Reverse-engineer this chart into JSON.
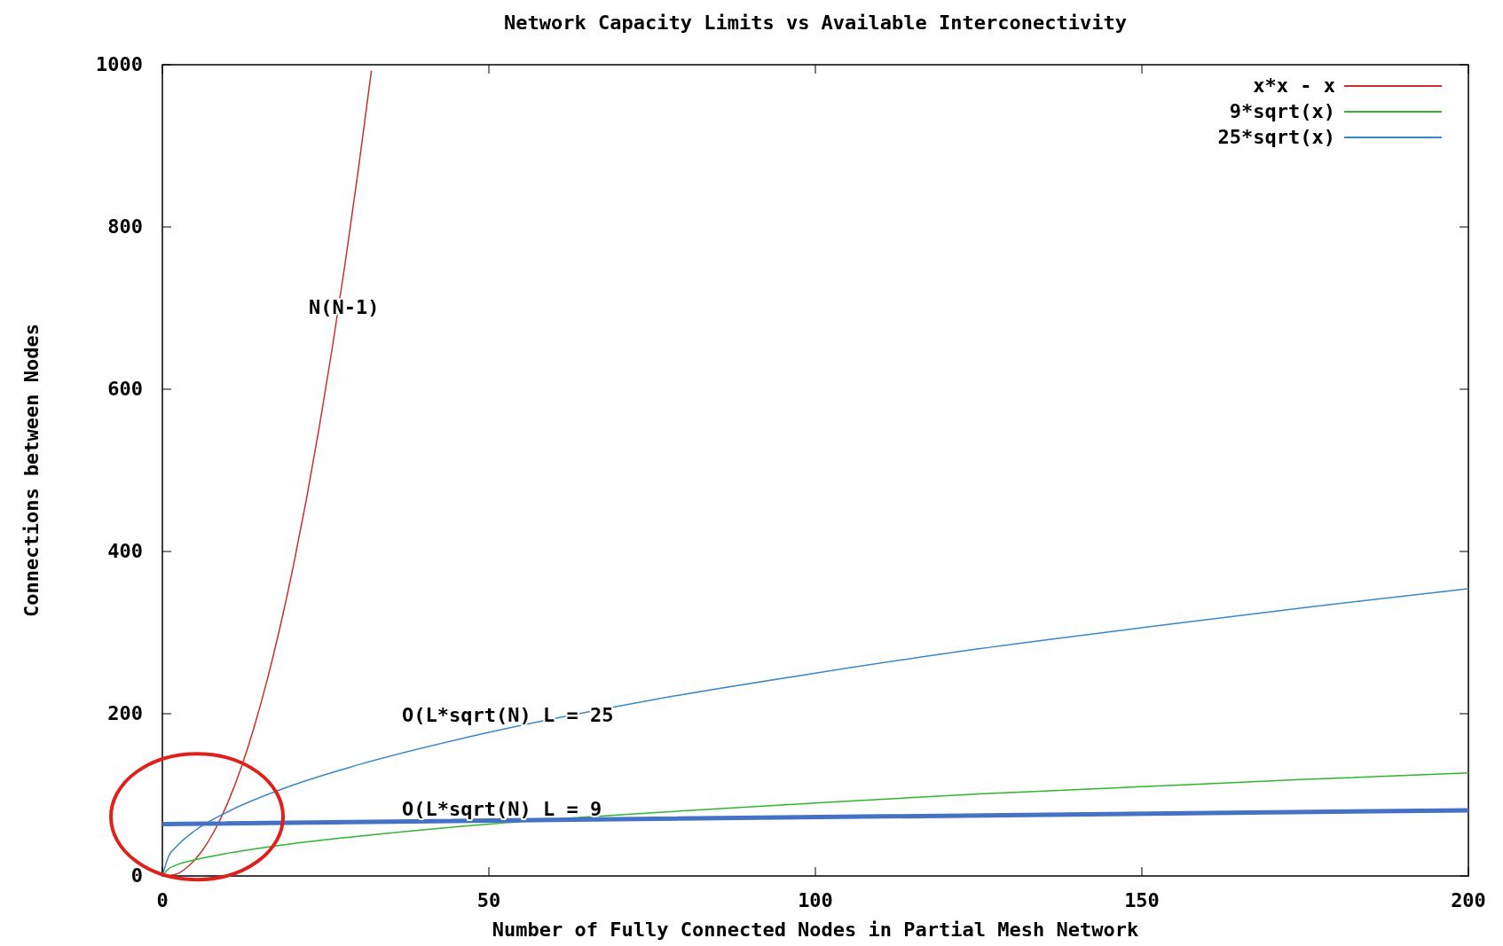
{
  "chart_data": {
    "type": "line",
    "title": "Network Capacity Limits vs Available Interconectivity",
    "xlabel": "Number of Fully Connected Nodes in Partial Mesh Network",
    "ylabel": "Connections between Nodes",
    "xlim": [
      0,
      200
    ],
    "xticks": [
      0,
      50,
      100,
      150,
      200
    ],
    "ylim": [
      0,
      1000
    ],
    "yticks": [
      0,
      200,
      400,
      600,
      800,
      1000
    ],
    "grid": false,
    "legend": "top right",
    "series": [
      {
        "name": "x*x - x",
        "color": "#c8312b",
        "x": [
          0,
          2,
          4,
          6,
          8,
          10,
          12,
          14,
          16,
          18,
          20,
          22,
          24,
          26,
          28,
          30,
          32
        ],
        "values": [
          0,
          2,
          12,
          30,
          56,
          90,
          132,
          182,
          240,
          306,
          380,
          462,
          552,
          650,
          756,
          870,
          992
        ]
      },
      {
        "name": "9*sqrt(x)",
        "color": "#2fb52f",
        "x": [
          0,
          1,
          2,
          5,
          10,
          20,
          30,
          50,
          75,
          100,
          125,
          150,
          175,
          200
        ],
        "values": [
          0,
          9,
          13,
          20,
          28,
          40,
          49,
          64,
          78,
          90,
          101,
          110,
          119,
          127
        ]
      },
      {
        "name": "25*sqrt(x)",
        "color": "#3a87c8",
        "x": [
          0,
          1,
          2,
          5,
          10,
          20,
          30,
          50,
          75,
          100,
          125,
          150,
          175,
          200
        ],
        "values": [
          0,
          25,
          35,
          56,
          79,
          112,
          137,
          177,
          217,
          250,
          280,
          306,
          331,
          354
        ]
      },
      {
        "color": "#4472c4",
        "x": [
          0,
          200
        ],
        "values": [
          64,
          81
        ]
      }
    ],
    "annotations": [
      "N(N-1)",
      "O(L*sqrt(N) L = 25",
      "O(L*sqrt(N) L = 9"
    ]
  }
}
